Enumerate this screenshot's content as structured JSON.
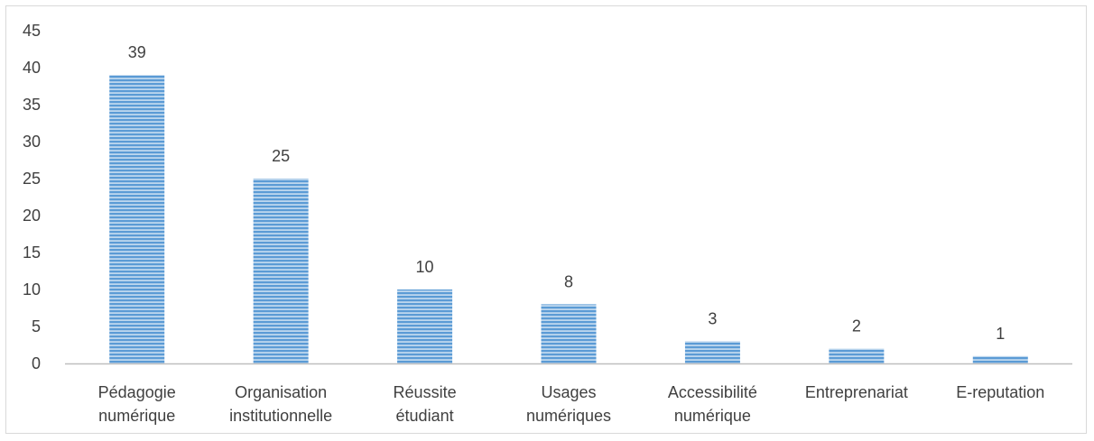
{
  "chart_data": {
    "type": "bar",
    "categories": [
      [
        "Pédagogie",
        "numérique"
      ],
      [
        "Organisation",
        "institutionnelle"
      ],
      [
        "Réussite",
        "étudiant"
      ],
      [
        "Usages",
        "numériques"
      ],
      [
        "Accessibilité",
        "numérique"
      ],
      [
        "Entreprenariat"
      ],
      [
        "E-reputation"
      ]
    ],
    "values": [
      39,
      25,
      10,
      8,
      3,
      2,
      1
    ],
    "data_labels": [
      "39",
      "25",
      "10",
      "8",
      "3",
      "2",
      "1"
    ],
    "ylim": [
      0,
      45
    ],
    "yticks": [
      0,
      5,
      10,
      15,
      20,
      25,
      30,
      35,
      40,
      45
    ],
    "ytick_labels": [
      "0",
      "5",
      "10",
      "15",
      "20",
      "25",
      "30",
      "35",
      "40",
      "45"
    ],
    "title": "",
    "xlabel": "",
    "ylabel": "",
    "grid": false,
    "legend": "none",
    "bar_fill": "horizontal stripes",
    "colors": {
      "bar_stripe": "#5b9bd5",
      "bar_light": "#bdd7ee",
      "axis": "#bfbfbf",
      "text": "#404040"
    }
  }
}
